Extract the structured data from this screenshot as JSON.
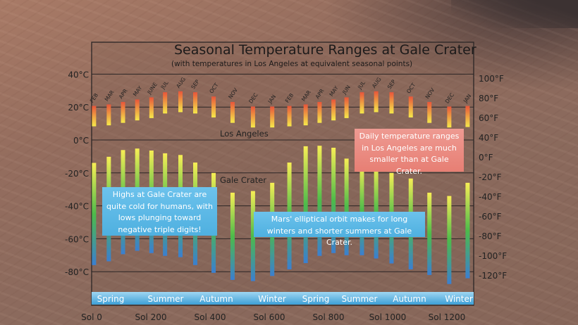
{
  "chart_data": {
    "type": "bar",
    "title": "Seasonal Temperature Ranges at Gale Crater",
    "subtitle": "(with temperatures in Los Angeles at equivalent seasonal points)",
    "ylabel_left_unit": "°C",
    "ylim_celsius": [
      -95,
      40
    ],
    "left_ticks": [
      "40°C",
      "20°C",
      "0°C",
      "-20°C",
      "-40°C",
      "-60°C",
      "-80°C"
    ],
    "left_tick_values": [
      40,
      20,
      0,
      -20,
      -40,
      -60,
      -80
    ],
    "right_ticks": [
      "100°F",
      "80°F",
      "60°F",
      "40°F",
      "0°F",
      "-20°F",
      "-40°F",
      "-60°F",
      "-80°F",
      "-100°F",
      "-120°F"
    ],
    "x_ticks": [
      "Sol 0",
      "Sol 200",
      "Sol 400",
      "Sol 600",
      "Sol 800",
      "Sol 1000",
      "Sol 1200"
    ],
    "x_tick_values": [
      0,
      200,
      400,
      600,
      800,
      1000,
      1200
    ],
    "seasons": [
      "Spring",
      "Summer",
      "Autumn",
      "Winter",
      "Spring",
      "Summer",
      "Autumn",
      "Winter"
    ],
    "months": [
      "FEB",
      "MAR",
      "APR",
      "MAY",
      "JUNE",
      "JUL",
      "AUG",
      "SEP",
      "OCT",
      "NOV",
      "DEC",
      "JAN",
      "FEB",
      "MAR",
      "APR",
      "MAY",
      "JUN",
      "JUL",
      "AUG",
      "SEP",
      "OCT",
      "NOV",
      "DEC",
      "JAN"
    ],
    "sols": [
      8,
      58,
      106,
      154,
      202,
      248,
      300,
      350,
      412,
      476,
      545,
      610,
      668,
      723,
      770,
      817,
      861,
      913,
      961,
      1013,
      1078,
      1141,
      1208,
      1270
    ],
    "series": [
      {
        "name": "Los Angeles",
        "color_high": "#e8553a",
        "color_low": "#f6e84a",
        "high": [
          20.7,
          21.6,
          23.1,
          24.6,
          25.9,
          29,
          29.6,
          29,
          26.4,
          23.1,
          20.3,
          20.3,
          20.7,
          21.6,
          23.1,
          24.6,
          25.9,
          29,
          29.6,
          29,
          26.4,
          23.1,
          20.3,
          20.7
        ],
        "low": [
          8.3,
          8.9,
          10.4,
          11.9,
          13.3,
          16.1,
          16.9,
          16.1,
          13.7,
          10.4,
          7.6,
          7.6,
          8.3,
          8.9,
          10.4,
          11.9,
          13.3,
          16.1,
          16.9,
          16.1,
          13.7,
          10.4,
          7.6,
          7.9
        ]
      },
      {
        "name": "Gale Crater",
        "color_high": "#f7ee55",
        "color_mid": "#4dbb4a",
        "color_low": "#3b7fd0",
        "high": [
          -13.9,
          -10.2,
          -6.1,
          -5.2,
          -6.4,
          -8.1,
          -9.1,
          -13.7,
          -20,
          -32,
          -31,
          -26,
          -13.7,
          -3.8,
          -3.5,
          -4.7,
          -11.3,
          -15,
          -15,
          -20,
          -23.4,
          -32,
          -34,
          -26
        ],
        "low": [
          -76,
          -73.7,
          -69.4,
          -67.3,
          -68.7,
          -70.4,
          -71.2,
          -76,
          -80.7,
          -85,
          -85.7,
          -82.6,
          -78.6,
          -74.8,
          -70.4,
          -68.7,
          -70,
          -70,
          -72,
          -75,
          -78.6,
          -82,
          -87.5,
          -84
        ]
      }
    ],
    "annotations": {
      "la_label": "Los Angeles",
      "gale_label": "Gale Crater",
      "highs_note": "Highs at Gale Crater are quite cold for humans, with lows plunging toward negative triple digits!",
      "orbit_note": "Mars' elliptical orbit makes for long winters and shorter summers at Gale Crater.",
      "la_note": "Daily temperature ranges in Los Angeles are much smaller than at Gale Crater."
    },
    "grid": true
  }
}
